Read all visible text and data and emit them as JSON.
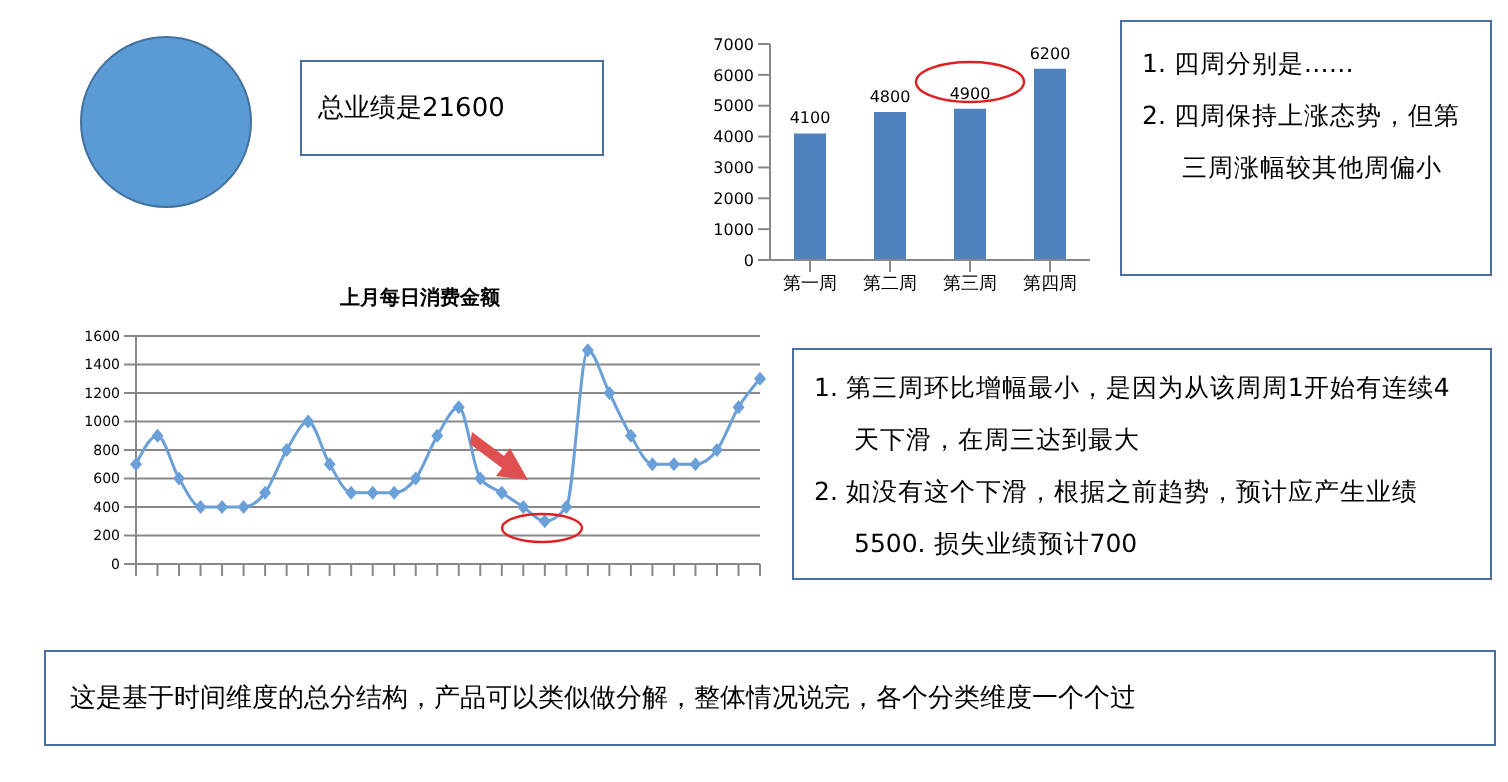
{
  "chart_data": [
    {
      "type": "other",
      "annotations": [
        "总业绩是21600"
      ]
    },
    {
      "type": "bar",
      "categories": [
        "第一周",
        "第二周",
        "第三周",
        "第四周"
      ],
      "values": [
        4100,
        4800,
        4900,
        6200
      ],
      "color": "#4f81bd",
      "ylim": [
        0,
        7000
      ],
      "yticks": [
        0,
        1000,
        2000,
        3000,
        4000,
        5000,
        6000,
        7000
      ],
      "data_labels": true,
      "grid": false,
      "legend": false,
      "annotations": [
        "1. 四周分别是……",
        "2. 四周保持上涨态势，但第三周涨幅较其他周偏小"
      ]
    },
    {
      "type": "line",
      "title": "上月每日消费金额",
      "categories": [
        null,
        null,
        null,
        null,
        null,
        null,
        null,
        null,
        null,
        null,
        null,
        null,
        null,
        null,
        null,
        null,
        null,
        null,
        null,
        null,
        null,
        null,
        null,
        null,
        null,
        null,
        null,
        null,
        null,
        null
      ],
      "values": [
        700,
        900,
        600,
        400,
        400,
        400,
        500,
        800,
        1000,
        700,
        500,
        500,
        500,
        600,
        900,
        1100,
        600,
        500,
        400,
        300,
        400,
        1500,
        1200,
        900,
        700,
        700,
        700,
        800,
        1100,
        1300
      ],
      "color": "#6a9fd8",
      "ylim": [
        0,
        1600
      ],
      "yticks": [
        0,
        200,
        400,
        600,
        800,
        1000,
        1200,
        1400,
        1600
      ],
      "grid": "y",
      "marker": "diamond",
      "legend": false,
      "annotations": [
        "1. 第三周环比增幅最小，是因为从该周周1开始有连续4天下滑，在周三达到最大",
        "2. 如没有这个下滑，根据之前趋势，预计应产生业绩5500. 损失业绩预计700"
      ]
    },
    {
      "type": "other",
      "annotations": [
        "这是基于时间维度的总分结构，产品可以类似做分解，整体情况说完，各个分类维度一个个过"
      ]
    }
  ]
}
